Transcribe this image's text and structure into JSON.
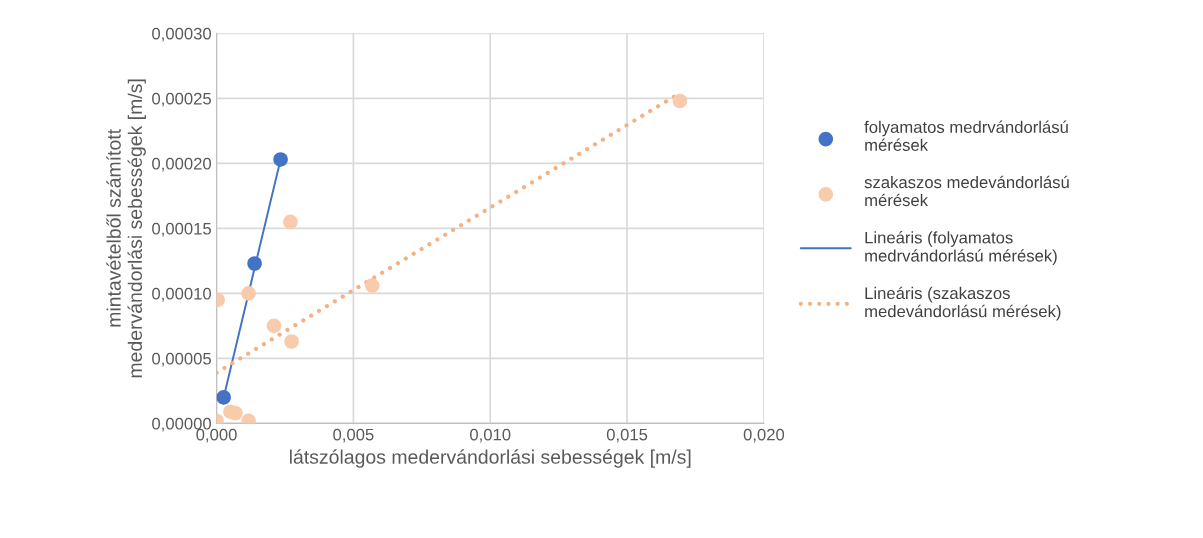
{
  "chart_data": {
    "type": "scatter",
    "xlabel": "látszólagos medervándorlási sebességek [m/s]",
    "ylabel": "mintavételből számított\nmedervándorlási sebességek [m/s]",
    "xlim": [
      0,
      0.02
    ],
    "xticks": [
      {
        "value": 0,
        "label": "0,000"
      },
      {
        "value": 0.005,
        "label": "0,005"
      },
      {
        "value": 0.01,
        "label": "0,010"
      },
      {
        "value": 0.015,
        "label": "0,015"
      },
      {
        "value": 0.02,
        "label": "0,020"
      }
    ],
    "ylim": [
      0,
      0.0003
    ],
    "yticks": [
      {
        "value": 0,
        "label": "0,00000"
      },
      {
        "value": 5e-05,
        "label": "0,00005"
      },
      {
        "value": 0.0001,
        "label": "0,00010"
      },
      {
        "value": 0.00015,
        "label": "0,00015"
      },
      {
        "value": 0.0002,
        "label": "0,00020"
      },
      {
        "value": 0.00025,
        "label": "0,00025"
      },
      {
        "value": 0.0003,
        "label": "0,00030"
      }
    ],
    "grid": true,
    "legend": "right",
    "series": [
      {
        "name": "folyamatos medrvándorlású mérések",
        "marker": "circle",
        "color": "#4472c4",
        "x": [
          0.00026,
          0.00139,
          0.00234
        ],
        "values": [
          2e-05,
          0.000123,
          0.000203
        ]
      },
      {
        "name": "szakaszos medevándorlású mérések",
        "marker": "circle",
        "color": "#f8cbad",
        "x": [
          4e-05,
          0.00117,
          0.0027,
          0.0021,
          0.00274,
          0.00051,
          0.00069,
          0.00117,
          0.0,
          0.00569,
          0.01693
        ],
        "values": [
          9.5e-05,
          0.0001,
          0.000155,
          7.5e-05,
          6.3e-05,
          9e-06,
          8e-06,
          2e-06,
          2e-06,
          0.000106,
          0.000248
        ]
      },
      {
        "name": "Lineáris (folyamatos medrvándorlású mérések)",
        "type": "line",
        "line_style": "solid",
        "color": "#4472c4",
        "x": [
          0.00026,
          0.00234
        ],
        "values": [
          2e-05,
          0.000203
        ]
      },
      {
        "name": "Lineáris (szakaszos medevándorlású mérések)",
        "type": "line",
        "line_style": "dotted",
        "color": "#f4b183",
        "x": [
          0.0,
          0.01693
        ],
        "values": [
          3.9e-05,
          0.000254
        ]
      }
    ]
  }
}
